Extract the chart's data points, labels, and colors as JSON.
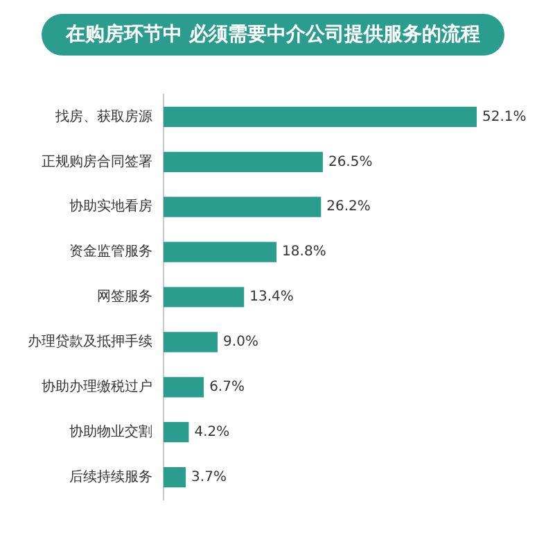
{
  "chart_data": {
    "type": "bar",
    "orientation": "horizontal",
    "title": "在购房环节中 必须需要中介公司提供服务的流程",
    "categories": [
      "找房、获取房源",
      "正规购房合同签署",
      "协助实地看房",
      "资金监管服务",
      "网签服务",
      "办理贷款及抵押手续",
      "协助办理缴税过户",
      "协助物业交割",
      "后续持续服务"
    ],
    "values": [
      52.1,
      26.5,
      26.2,
      18.8,
      13.4,
      9.0,
      6.7,
      4.2,
      3.7
    ],
    "value_labels": [
      "52.1%",
      "26.5%",
      "26.2%",
      "18.8%",
      "13.4%",
      "9.0%",
      "6.7%",
      "4.2%",
      "3.7%"
    ],
    "color": "#2a9d8f"
  }
}
